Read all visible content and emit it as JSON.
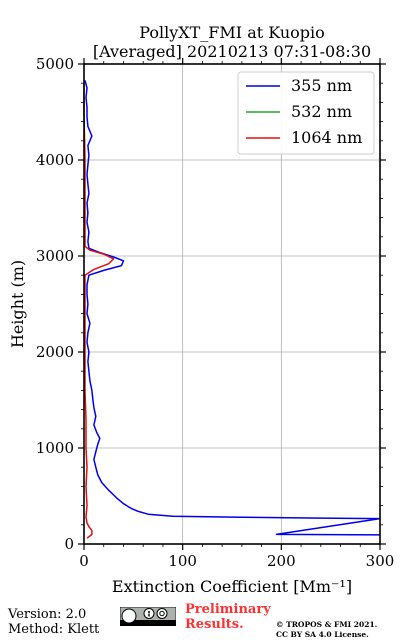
{
  "chart_data": {
    "type": "line",
    "title": "PollyXT_FMI at Kuopio",
    "subtitle": "[Averaged] 20210213 07:31-08:30",
    "xlabel": "Extinction Coefficient [Mm⁻¹]",
    "ylabel": "Height (m)",
    "xlim": [
      0,
      300
    ],
    "ylim": [
      0,
      5000
    ],
    "x_ticks": [
      "0",
      "100",
      "200",
      "300"
    ],
    "y_ticks": [
      "0",
      "1000",
      "2000",
      "3000",
      "4000",
      "5000"
    ],
    "grid": true,
    "legend_position": "top-right",
    "series": [
      {
        "name": "355 nm",
        "color": "#0000ee",
        "points": [
          [
            300,
            95
          ],
          [
            195,
            100
          ],
          [
            300,
            265
          ],
          [
            240,
            270
          ],
          [
            150,
            280
          ],
          [
            90,
            290
          ],
          [
            65,
            310
          ],
          [
            55,
            340
          ],
          [
            48,
            370
          ],
          [
            40,
            420
          ],
          [
            33,
            480
          ],
          [
            25,
            560
          ],
          [
            18,
            640
          ],
          [
            14,
            720
          ],
          [
            12,
            800
          ],
          [
            10,
            880
          ],
          [
            12,
            960
          ],
          [
            14,
            1040
          ],
          [
            16,
            1100
          ],
          [
            13,
            1160
          ],
          [
            10,
            1240
          ],
          [
            12,
            1330
          ],
          [
            10,
            1420
          ],
          [
            9,
            1500
          ],
          [
            8,
            1600
          ],
          [
            6,
            1700
          ],
          [
            5,
            1800
          ],
          [
            4,
            1900
          ],
          [
            5,
            2000
          ],
          [
            3,
            2100
          ],
          [
            4,
            2200
          ],
          [
            6,
            2300
          ],
          [
            3,
            2400
          ],
          [
            4,
            2500
          ],
          [
            3,
            2600
          ],
          [
            3,
            2700
          ],
          [
            5,
            2800
          ],
          [
            20,
            2850
          ],
          [
            38,
            2900
          ],
          [
            40,
            2950
          ],
          [
            30,
            2990
          ],
          [
            15,
            3040
          ],
          [
            5,
            3080
          ],
          [
            4,
            3150
          ],
          [
            5,
            3250
          ],
          [
            3,
            3350
          ],
          [
            4,
            3450
          ],
          [
            3,
            3550
          ],
          [
            5,
            3650
          ],
          [
            4,
            3750
          ],
          [
            3,
            3850
          ],
          [
            4,
            3950
          ],
          [
            5,
            4050
          ],
          [
            4,
            4150
          ],
          [
            8,
            4250
          ],
          [
            4,
            4350
          ],
          [
            3,
            4450
          ],
          [
            3,
            4550
          ],
          [
            2,
            4650
          ],
          [
            3,
            4750
          ],
          [
            1,
            4830
          ]
        ]
      },
      {
        "name": "532 nm",
        "color": "#22aa22",
        "points": []
      },
      {
        "name": "1064 nm",
        "color": "#dd1111",
        "points": [
          [
            3,
            60
          ],
          [
            8,
            100
          ],
          [
            8,
            140
          ],
          [
            5,
            180
          ],
          [
            3,
            220
          ],
          [
            2,
            280
          ],
          [
            3,
            400
          ],
          [
            2,
            600
          ],
          [
            3,
            800
          ],
          [
            2,
            1000
          ],
          [
            2,
            1300
          ],
          [
            1,
            1600
          ],
          [
            1,
            2000
          ],
          [
            1,
            2400
          ],
          [
            1,
            2700
          ],
          [
            1,
            2800
          ],
          [
            10,
            2860
          ],
          [
            25,
            2920
          ],
          [
            30,
            2970
          ],
          [
            20,
            3020
          ],
          [
            6,
            3060
          ],
          [
            1,
            3100
          ],
          [
            1,
            3500
          ],
          [
            1,
            4000
          ],
          [
            0,
            4500
          ],
          [
            0,
            4800
          ]
        ]
      }
    ]
  },
  "footer": {
    "version": "Version: 2.0",
    "method": "Method: Klett",
    "preliminary_line1": "Preliminary",
    "preliminary_line2": "Results.",
    "copyright_line1": "© TROPOS & FMI 2021.",
    "copyright_line2": "CC BY SA 4.0 License."
  }
}
